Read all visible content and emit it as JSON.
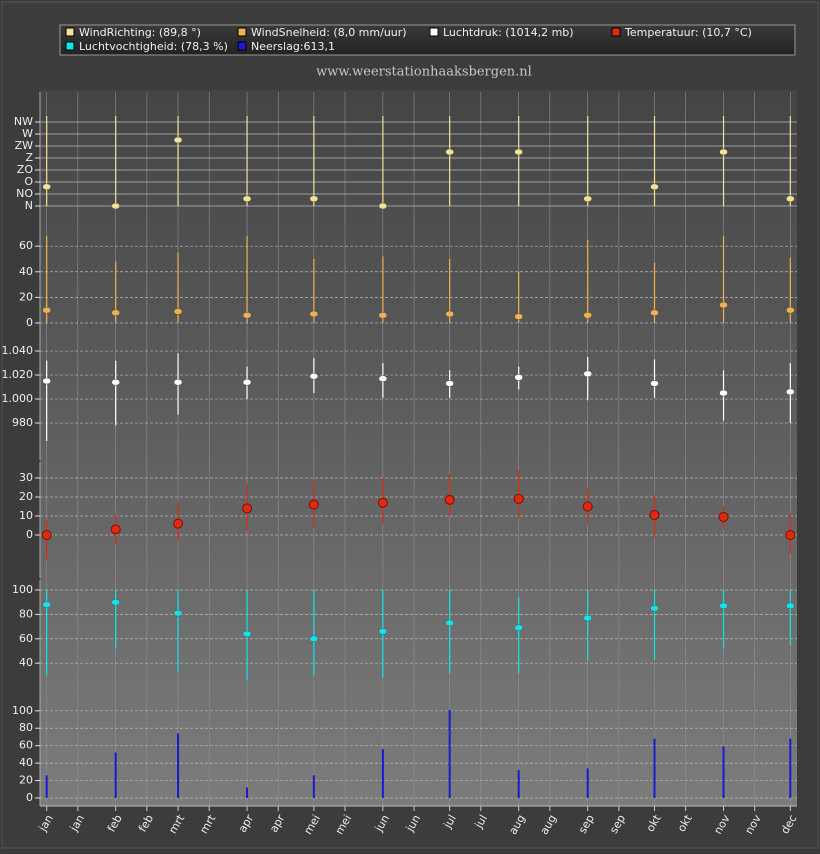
{
  "subtitle": "www.weerstationhaaksbergen.nl",
  "chart_data": [
    {
      "type": "errorbar",
      "x": [
        0,
        31,
        59,
        90,
        120,
        151,
        181,
        212,
        243,
        273,
        304,
        334
      ],
      "xlim": [
        -3,
        337
      ],
      "xticks": [
        {
          "value": 0,
          "label": "jan"
        },
        {
          "value": 14,
          "label": "jan"
        },
        {
          "value": 31,
          "label": "feb"
        },
        {
          "value": 45,
          "label": "feb"
        },
        {
          "value": 59,
          "label": "mrt"
        },
        {
          "value": 73,
          "label": "mrt"
        },
        {
          "value": 90,
          "label": "apr"
        },
        {
          "value": 104,
          "label": "apr"
        },
        {
          "value": 120,
          "label": "mei"
        },
        {
          "value": 134,
          "label": "mei"
        },
        {
          "value": 151,
          "label": "jun"
        },
        {
          "value": 165,
          "label": "jun"
        },
        {
          "value": 181,
          "label": "jul"
        },
        {
          "value": 195,
          "label": "jul"
        },
        {
          "value": 212,
          "label": "aug"
        },
        {
          "value": 226,
          "label": "aug"
        },
        {
          "value": 243,
          "label": "sep"
        },
        {
          "value": 257,
          "label": "sep"
        },
        {
          "value": 273,
          "label": "okt"
        },
        {
          "value": 287,
          "label": "okt"
        },
        {
          "value": 304,
          "label": "nov"
        },
        {
          "value": 318,
          "label": "nov"
        },
        {
          "value": 334,
          "label": "dec"
        }
      ],
      "ylim": [
        -0.5,
        9.5
      ],
      "yticks": [
        {
          "value": 0,
          "label": "N"
        },
        {
          "value": 1,
          "label": "NO"
        },
        {
          "value": 2,
          "label": "O"
        },
        {
          "value": 3,
          "label": "ZO"
        },
        {
          "value": 4,
          "label": "Z"
        },
        {
          "value": 5,
          "label": "ZW"
        },
        {
          "value": 6,
          "label": "W"
        },
        {
          "value": 7,
          "label": "NW"
        }
      ],
      "series": [
        {
          "name": "WindRichting: (89,8 °)",
          "color": "#f2e296",
          "values": [
            1.6,
            0,
            5.5,
            0.6,
            0.6,
            0,
            4.5,
            4.5,
            0.6,
            1.6,
            4.5,
            0.6
          ],
          "low": [
            0,
            0,
            0,
            0,
            0,
            0,
            0,
            0,
            0,
            0,
            0,
            0
          ],
          "high": [
            7.5,
            7.5,
            7.5,
            7.5,
            7.5,
            7.5,
            7.5,
            7.5,
            7.5,
            7.5,
            7.5,
            7.5
          ]
        }
      ]
    },
    {
      "type": "errorbar",
      "x": [
        0,
        31,
        59,
        90,
        120,
        151,
        181,
        212,
        243,
        273,
        304,
        334
      ],
      "ylim": [
        -13.3,
        86.7
      ],
      "yticks": [
        0,
        20,
        40,
        60
      ],
      "series": [
        {
          "name": "WindSnelheid: (8,0 mm/uur)",
          "color": "#f0b050",
          "values": [
            10,
            8,
            9,
            6,
            7,
            6,
            7,
            5,
            6,
            8,
            14,
            10
          ],
          "low": [
            0,
            0,
            0,
            0,
            0,
            0,
            0,
            0,
            0,
            0,
            0,
            0
          ],
          "high": [
            68,
            48,
            55,
            68,
            50,
            52,
            50,
            40,
            65,
            47,
            68,
            51
          ]
        }
      ]
    },
    {
      "type": "errorbar",
      "x": [
        0,
        31,
        59,
        90,
        120,
        151,
        181,
        212,
        243,
        273,
        304,
        334
      ],
      "ylim": [
        949.2,
        1049.2
      ],
      "yticks": [
        {
          "value": 980,
          "label": "980"
        },
        {
          "value": 1000,
          "label": "1.000"
        },
        {
          "value": 1020,
          "label": "1.020"
        },
        {
          "value": 1040,
          "label": "1.040"
        }
      ],
      "series": [
        {
          "name": "Luchtdruk: (1014,2 mb)",
          "color": "#ffffff",
          "values": [
            1015,
            1014,
            1014,
            1014,
            1019,
            1017,
            1013,
            1018,
            1021,
            1013,
            1005,
            1006
          ],
          "low": [
            965,
            978,
            987,
            1000,
            1005,
            1001,
            1001,
            1008,
            999,
            1001,
            982,
            980
          ],
          "high": [
            1032,
            1032,
            1038,
            1027,
            1034,
            1030,
            1024,
            1027,
            1035,
            1033,
            1024,
            1030
          ]
        }
      ]
    },
    {
      "type": "errorbar",
      "x": [
        0,
        31,
        59,
        90,
        120,
        151,
        181,
        212,
        243,
        273,
        304,
        334
      ],
      "ylim": [
        -22.6,
        38.4
      ],
      "yticks": [
        0,
        10,
        20,
        30
      ],
      "series": [
        {
          "name": "Temperatuur: (10,7 °C)",
          "color": "#e02a10",
          "values": [
            0,
            3,
            6,
            14,
            16,
            17,
            18.5,
            19,
            15,
            10.5,
            9.5,
            0
          ],
          "low": [
            -13,
            -5,
            -3,
            2,
            4,
            6,
            10,
            9,
            6,
            -1,
            3,
            -10
          ],
          "high": [
            8,
            11,
            17,
            27,
            29,
            30,
            32,
            34,
            25,
            21,
            15,
            11
          ]
        }
      ]
    },
    {
      "type": "errorbar",
      "x": [
        0,
        31,
        59,
        90,
        120,
        151,
        181,
        212,
        243,
        273,
        304,
        334
      ],
      "ylim": [
        9.8,
        108.2
      ],
      "yticks": [
        40,
        60,
        80,
        100
      ],
      "series": [
        {
          "name": "Luchtvochtigheid: (78,3 %)",
          "color": "#10e4e8",
          "values": [
            88,
            90,
            81,
            64,
            60,
            66,
            73,
            69,
            77,
            85,
            87,
            87
          ],
          "low": [
            30,
            52,
            33,
            26,
            30,
            28,
            32,
            32,
            42,
            43,
            52,
            55
          ],
          "high": [
            100,
            100,
            100,
            100,
            100,
            100,
            100,
            94,
            100,
            100,
            100,
            100
          ]
        }
      ]
    },
    {
      "type": "bar",
      "x": [
        0,
        31,
        59,
        90,
        120,
        151,
        181,
        212,
        243,
        273,
        304,
        334
      ],
      "ylim": [
        -9.2,
        112.4
      ],
      "yticks": [
        0,
        20,
        40,
        60,
        80,
        100
      ],
      "series": [
        {
          "name": "Neerslag:613,1",
          "color": "#1a1ad0",
          "values": [
            26,
            52,
            74,
            12,
            26,
            56,
            101,
            32,
            34,
            68,
            59,
            68
          ]
        }
      ]
    }
  ]
}
